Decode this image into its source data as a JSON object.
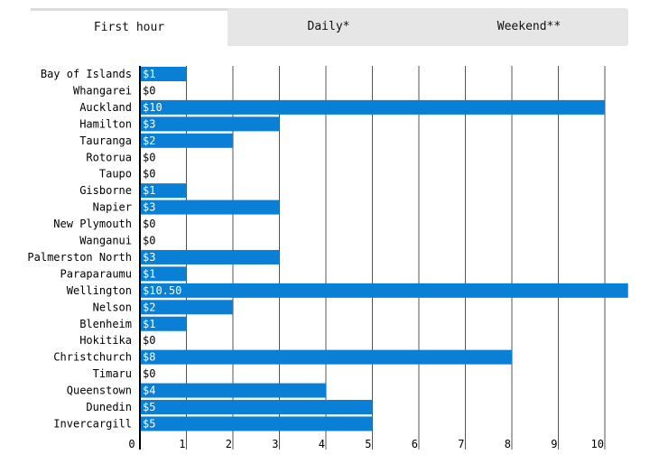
{
  "tabs": [
    {
      "label": "First hour",
      "active": true
    },
    {
      "label": "Daily*",
      "active": false
    },
    {
      "label": "Weekend**",
      "active": false
    }
  ],
  "colors": {
    "bar": "#0a7fd6",
    "grid": "#555555",
    "axis": "#000000"
  },
  "chart_data": {
    "type": "bar",
    "orientation": "horizontal",
    "title": "",
    "xlabel": "",
    "ylabel": "",
    "categories": [
      "Bay of Islands",
      "Whangarei",
      "Auckland",
      "Hamilton",
      "Tauranga",
      "Rotorua",
      "Taupo",
      "Gisborne",
      "Napier",
      "New Plymouth",
      "Wanganui",
      "Palmerston North",
      "Paraparaumu",
      "Wellington",
      "Nelson",
      "Blenheim",
      "Hokitika",
      "Christchurch",
      "Timaru",
      "Queenstown",
      "Dunedin",
      "Invercargill"
    ],
    "values": [
      1,
      0,
      10,
      3,
      2,
      0,
      0,
      1,
      3,
      0,
      0,
      3,
      1,
      10.5,
      2,
      1,
      0,
      8,
      0,
      4,
      5,
      5
    ],
    "value_labels": [
      "$1",
      "$0",
      "$10",
      "$3",
      "$2",
      "$0",
      "$0",
      "$1",
      "$3",
      "$0",
      "$0",
      "$3",
      "$1",
      "$10.50",
      "$2",
      "$1",
      "$0",
      "$8",
      "$0",
      "$4",
      "$5",
      "$5"
    ],
    "xlim": [
      0,
      10.5
    ],
    "xticks": [
      0,
      1,
      2,
      3,
      4,
      5,
      6,
      7,
      8,
      9,
      10
    ],
    "grid": "vertical"
  }
}
